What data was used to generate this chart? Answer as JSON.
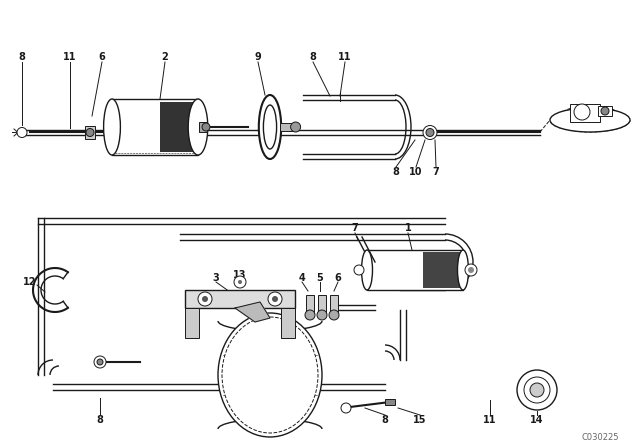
{
  "bg_color": "#ffffff",
  "line_color": "#1a1a1a",
  "label_color": "#1a1a1a",
  "watermark": "C030225",
  "fig_width": 6.4,
  "fig_height": 4.48,
  "dpi": 100,
  "lw_main": 1.0,
  "lw_thick": 2.0,
  "lw_thin": 0.7
}
